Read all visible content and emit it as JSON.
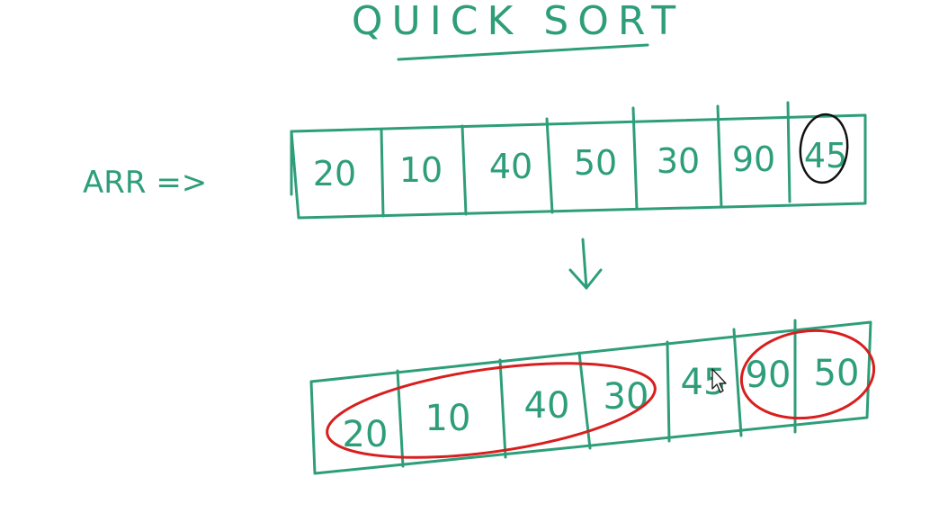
{
  "title": "QUICK SORT",
  "label": "ARR =>",
  "original_array": [
    "20",
    "10",
    "40",
    "50",
    "30",
    "90",
    "45"
  ],
  "partitioned_array": [
    "20",
    "10",
    "40",
    "30",
    "45",
    "90",
    "50"
  ],
  "pivot": "45",
  "arrow": "↓",
  "colors": {
    "ink": "#2e9e7a",
    "pivot_circle": "#111111",
    "partition_circle": "#d81e1e",
    "background": "#ffffff"
  }
}
